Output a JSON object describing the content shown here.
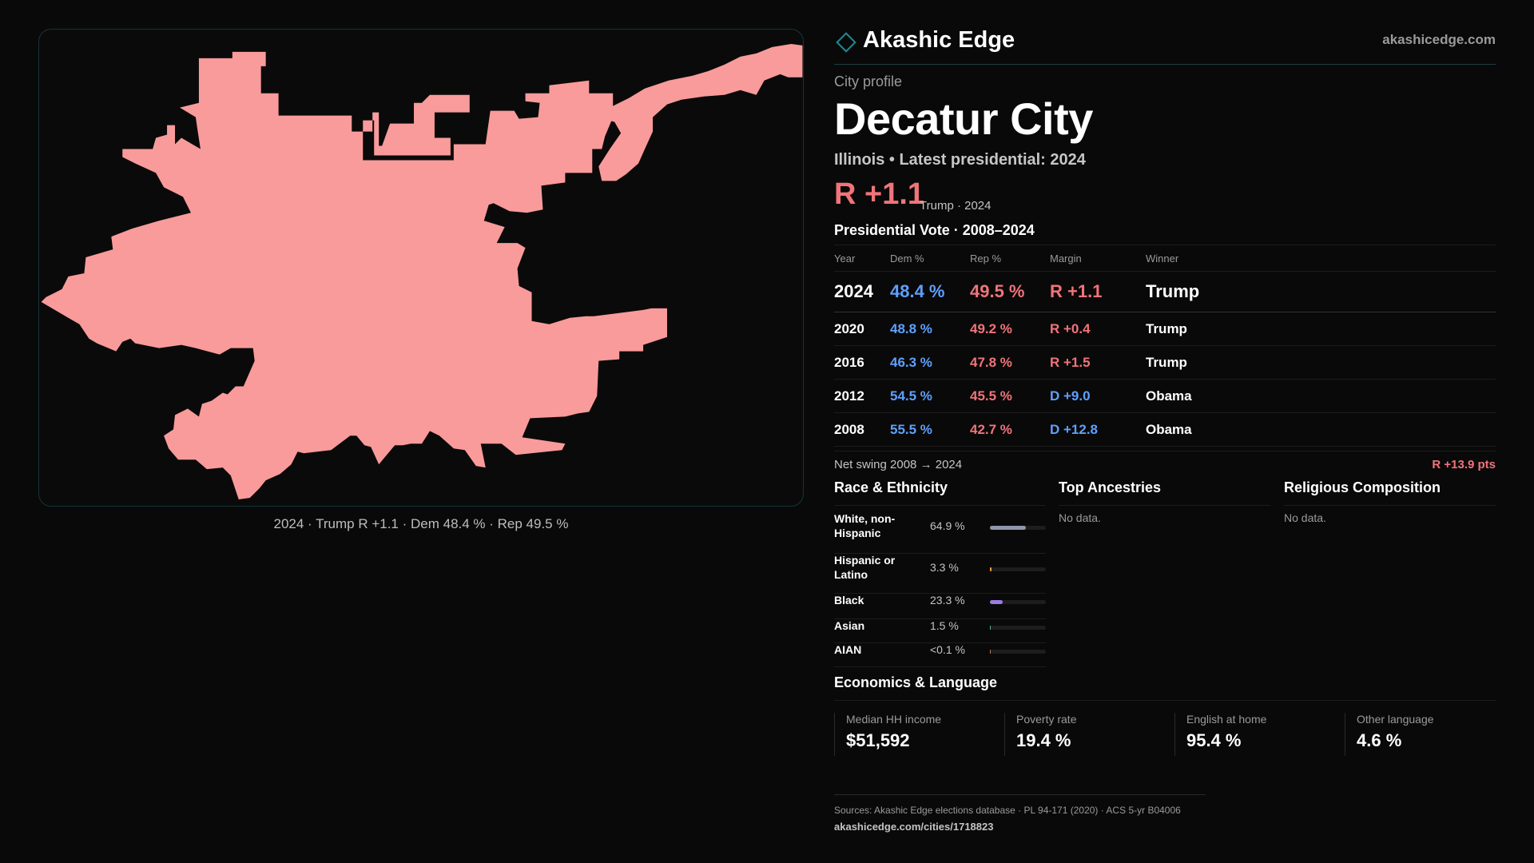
{
  "brand": {
    "name": "Akashic Edge",
    "url": "akashicedge.com"
  },
  "map": {
    "fill_color": "#f99b9b",
    "caption": "2024 · Trump R +1.1 · Dem 48.4 % · Rep 49.5 %"
  },
  "profile": {
    "kicker": "City profile",
    "title": "Decatur City",
    "subtitle": "Illinois • Latest presidential: 2024",
    "margin": "R +1.1",
    "margin_note": "Trump · 2024"
  },
  "vote": {
    "title": "Presidential Vote · 2008–2024",
    "headers": [
      "Year",
      "Dem %",
      "Rep %",
      "Margin",
      "Winner"
    ],
    "rows": [
      {
        "year": "2024",
        "dem": "48.4 %",
        "rep": "49.5 %",
        "margin": "R +1.1",
        "party": "R",
        "winner": "Trump"
      },
      {
        "year": "2020",
        "dem": "48.8 %",
        "rep": "49.2 %",
        "margin": "R +0.4",
        "party": "R",
        "winner": "Trump"
      },
      {
        "year": "2016",
        "dem": "46.3 %",
        "rep": "47.8 %",
        "margin": "R +1.5",
        "party": "R",
        "winner": "Trump"
      },
      {
        "year": "2012",
        "dem": "54.5 %",
        "rep": "45.5 %",
        "margin": "D +9.0",
        "party": "D",
        "winner": "Obama"
      },
      {
        "year": "2008",
        "dem": "55.5 %",
        "rep": "42.7 %",
        "margin": "D +12.8",
        "party": "D",
        "winner": "Obama"
      }
    ],
    "net_swing_label": "Net swing 2008 → 2024",
    "net_swing_value": "R +13.9 pts"
  },
  "race": {
    "title": "Race & Ethnicity",
    "items": [
      {
        "label": "White, non-Hispanic",
        "pct": "64.9 %",
        "value": 64.9,
        "color": "#8e98aa"
      },
      {
        "label": "Hispanic or Latino",
        "pct": "3.3 %",
        "value": 3.3,
        "color": "#e8a33a"
      },
      {
        "label": "Black",
        "pct": "23.3 %",
        "value": 23.3,
        "color": "#9b7be0"
      },
      {
        "label": "Asian",
        "pct": "1.5 %",
        "value": 1.5,
        "color": "#49b7a0"
      },
      {
        "label": "AIAN",
        "pct": "<0.1 %",
        "value": 0.05,
        "color": "#c07a50"
      }
    ]
  },
  "ancestries": {
    "title": "Top Ancestries",
    "empty": "No data."
  },
  "religion": {
    "title": "Religious Composition",
    "empty": "No data."
  },
  "economics": {
    "title": "Economics & Language",
    "stats": [
      {
        "label": "Median HH income",
        "value": "$51,592"
      },
      {
        "label": "Poverty rate",
        "value": "19.4 %"
      },
      {
        "label": "English at home",
        "value": "95.4 %"
      },
      {
        "label": "Other language",
        "value": "4.6 %"
      }
    ]
  },
  "sources": {
    "text": "Sources: Akashic Edge elections database · PL 94-171 (2020) · ACS 5-yr B04006",
    "url": "akashicedge.com/cities/1718823"
  }
}
